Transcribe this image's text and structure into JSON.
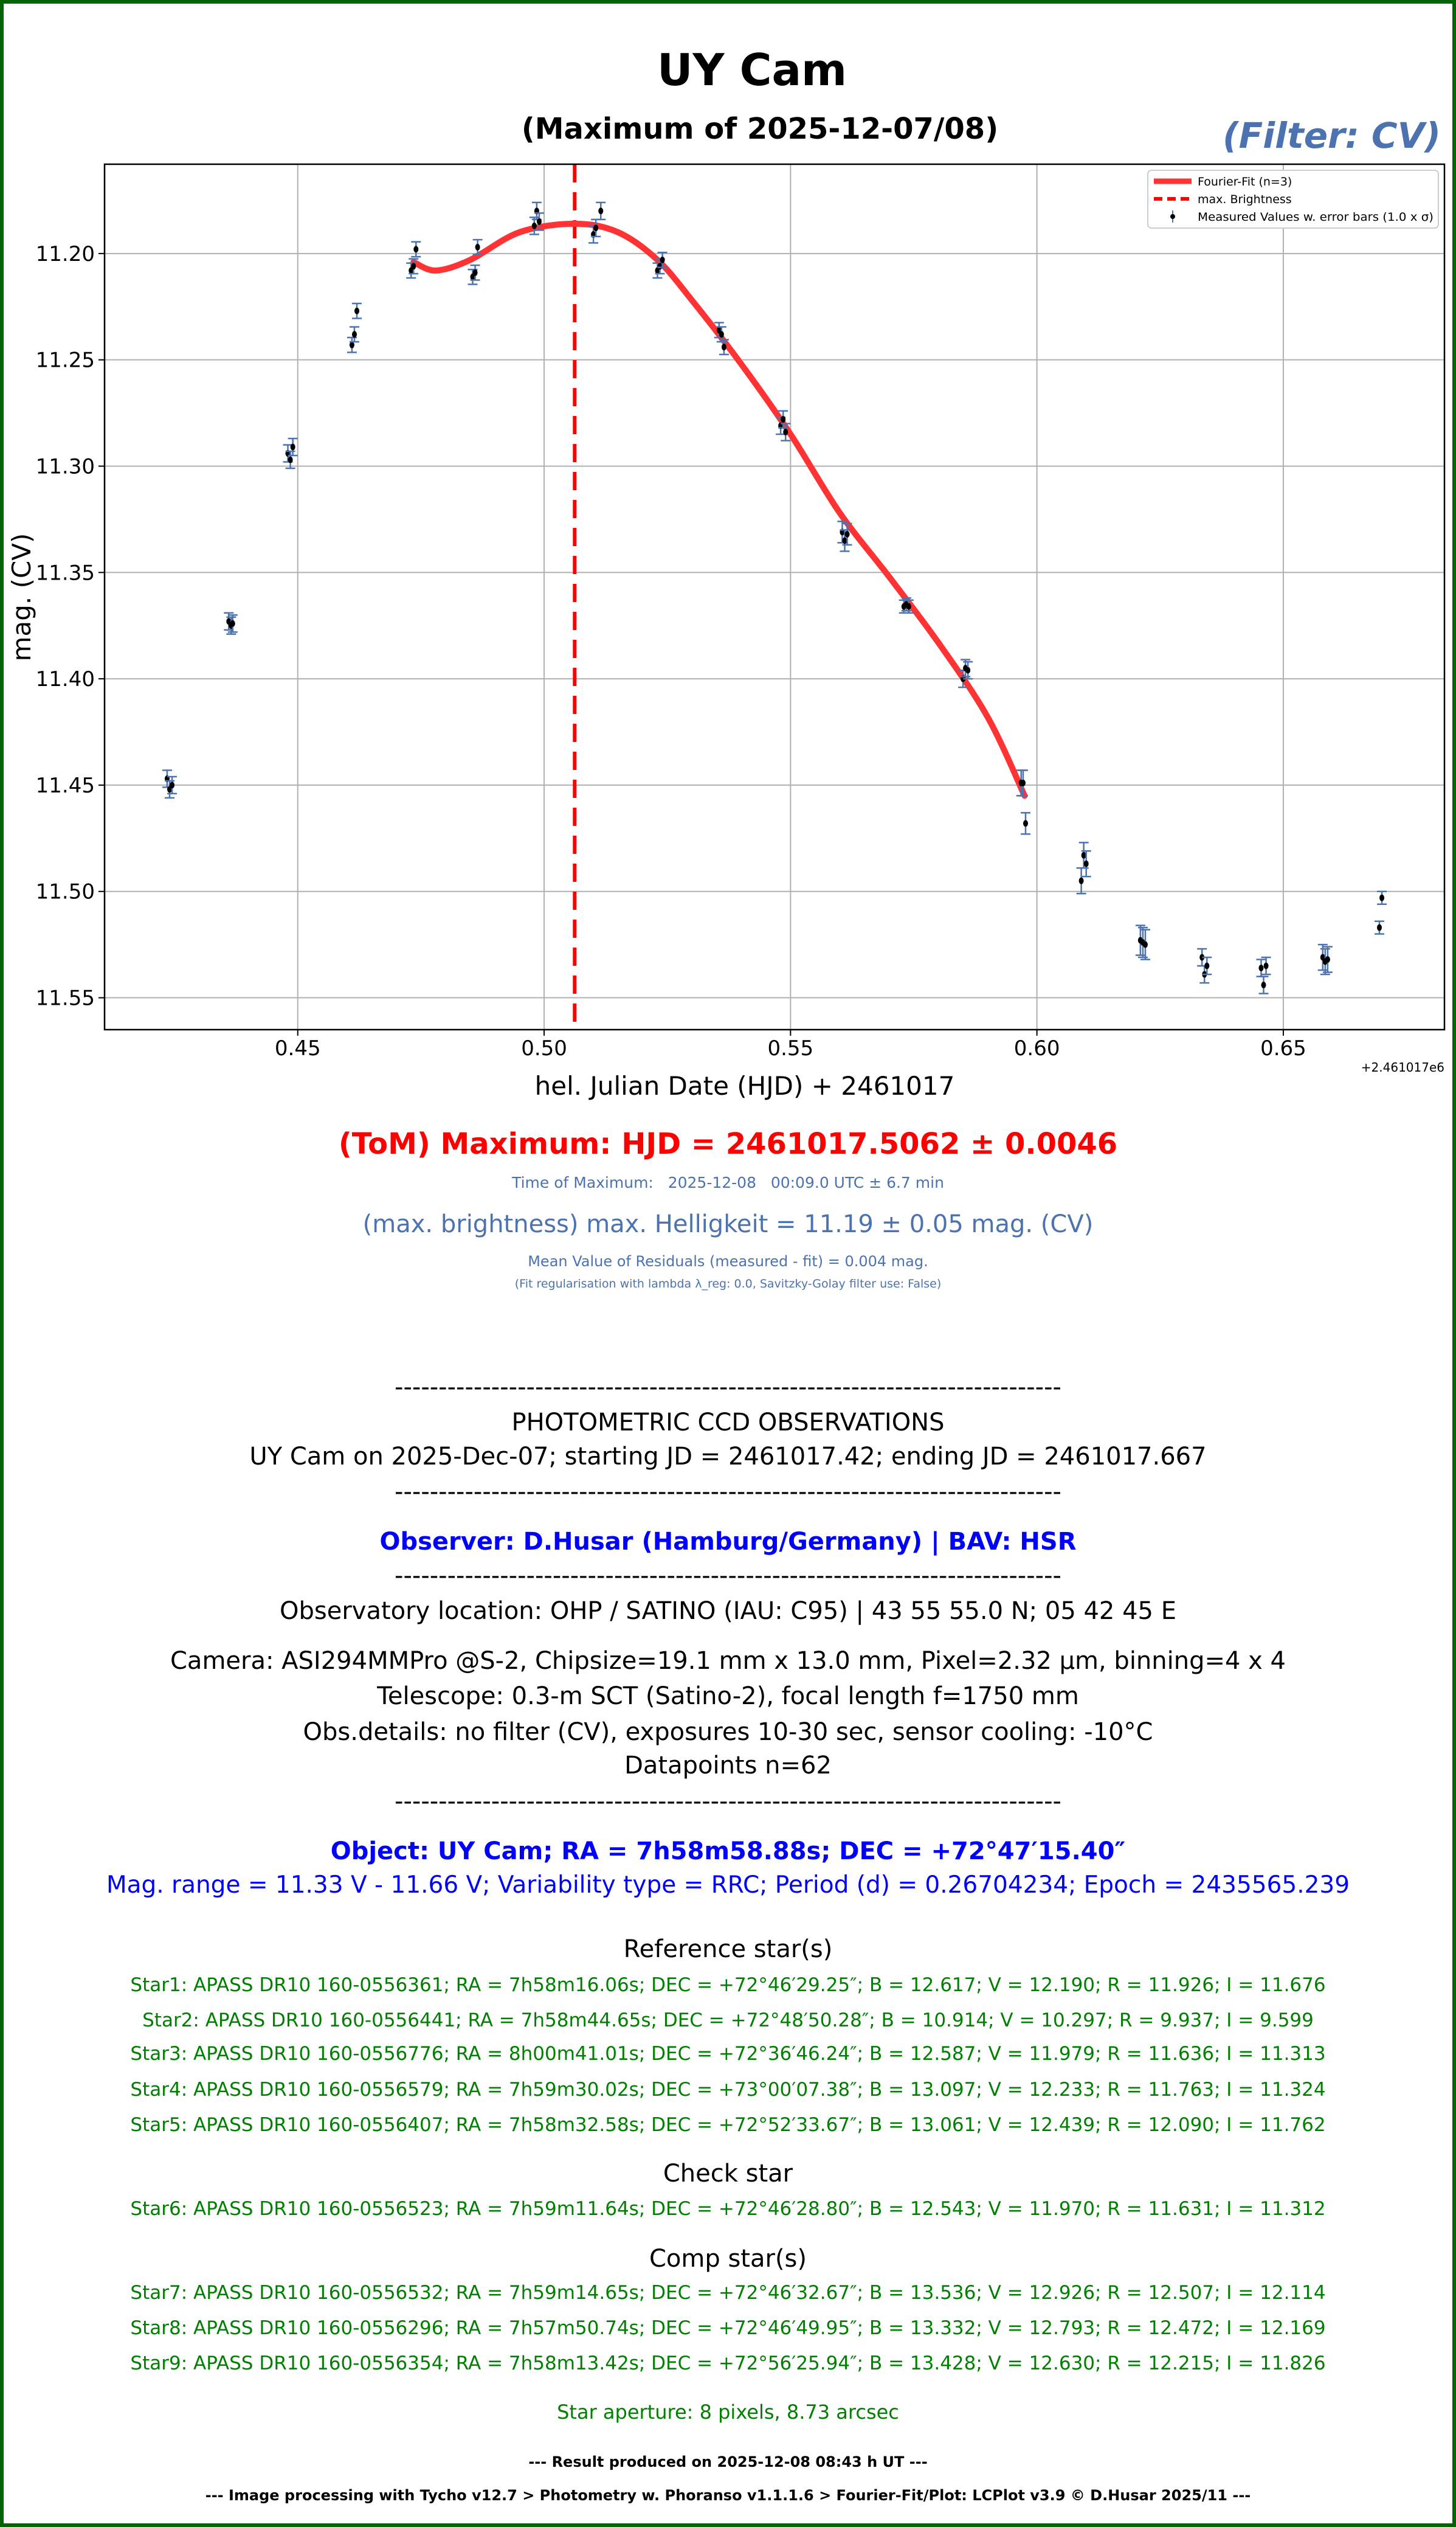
{
  "chart_data": {
    "type": "scatter",
    "title": "UY Cam",
    "subtitle": "(Maximum of 2025-12-07/08)",
    "filter_label": "(Filter: CV)",
    "xlabel": "hel. Julian Date (HJD) + 2461017",
    "ylabel": "mag. (CV)",
    "x_offset_label": "+2.461017e6",
    "xlim": [
      0.4108,
      0.6827
    ],
    "ylim": [
      11.565,
      11.158
    ],
    "y_inverted": true,
    "grid": true,
    "x_ticks": [
      0.45,
      0.5,
      0.55,
      0.6,
      0.65
    ],
    "x_tick_labels": [
      "0.45",
      "0.50",
      "0.55",
      "0.60",
      "0.65"
    ],
    "y_ticks": [
      11.2,
      11.25,
      11.3,
      11.35,
      11.4,
      11.45,
      11.5,
      11.55
    ],
    "y_tick_labels": [
      "11.20",
      "11.25",
      "11.30",
      "11.35",
      "11.40",
      "11.45",
      "11.50",
      "11.55"
    ],
    "legend_position": "top-right",
    "legend": [
      "Fourier-Fit (n=3)",
      "max. Brightness",
      "Measured Values w. error bars (1.0 x σ)"
    ],
    "colors": {
      "fit": "#ff3333",
      "max_line": "#ff0000",
      "errorbar": "#4c72b0",
      "point": "#000000"
    },
    "max_hjd": 0.5062,
    "measured": [
      [
        0.4235,
        11.447,
        0.004
      ],
      [
        0.424,
        11.452,
        0.004
      ],
      [
        0.4245,
        11.45,
        0.004
      ],
      [
        0.436,
        11.373,
        0.004
      ],
      [
        0.4365,
        11.375,
        0.004
      ],
      [
        0.4368,
        11.374,
        0.004
      ],
      [
        0.448,
        11.294,
        0.004
      ],
      [
        0.4485,
        11.297,
        0.004
      ],
      [
        0.449,
        11.291,
        0.004
      ],
      [
        0.461,
        11.243,
        0.0035
      ],
      [
        0.4615,
        11.238,
        0.0035
      ],
      [
        0.462,
        11.227,
        0.0035
      ],
      [
        0.473,
        11.208,
        0.0035
      ],
      [
        0.4735,
        11.206,
        0.0035
      ],
      [
        0.474,
        11.198,
        0.0035
      ],
      [
        0.4855,
        11.211,
        0.0035
      ],
      [
        0.486,
        11.209,
        0.0035
      ],
      [
        0.4865,
        11.197,
        0.0035
      ],
      [
        0.498,
        11.187,
        0.004
      ],
      [
        0.4985,
        11.18,
        0.004
      ],
      [
        0.499,
        11.185,
        0.004
      ],
      [
        0.51,
        11.191,
        0.004
      ],
      [
        0.5105,
        11.188,
        0.004
      ],
      [
        0.5115,
        11.18,
        0.004
      ],
      [
        0.523,
        11.208,
        0.0035
      ],
      [
        0.5235,
        11.206,
        0.0035
      ],
      [
        0.524,
        11.203,
        0.0035
      ],
      [
        0.5355,
        11.236,
        0.0035
      ],
      [
        0.536,
        11.238,
        0.0035
      ],
      [
        0.5365,
        11.244,
        0.0035
      ],
      [
        0.548,
        11.281,
        0.004
      ],
      [
        0.5485,
        11.278,
        0.004
      ],
      [
        0.549,
        11.284,
        0.004
      ],
      [
        0.5605,
        11.331,
        0.005
      ],
      [
        0.561,
        11.335,
        0.005
      ],
      [
        0.5615,
        11.332,
        0.005
      ],
      [
        0.573,
        11.366,
        0.003
      ],
      [
        0.5735,
        11.365,
        0.003
      ],
      [
        0.574,
        11.366,
        0.003
      ],
      [
        0.585,
        11.4,
        0.004
      ],
      [
        0.5855,
        11.395,
        0.004
      ],
      [
        0.586,
        11.396,
        0.004
      ],
      [
        0.5968,
        11.449,
        0.006
      ],
      [
        0.5972,
        11.449,
        0.006
      ],
      [
        0.5977,
        11.468,
        0.005
      ],
      [
        0.609,
        11.495,
        0.006
      ],
      [
        0.6095,
        11.483,
        0.006
      ],
      [
        0.61,
        11.487,
        0.006
      ],
      [
        0.621,
        11.523,
        0.007
      ],
      [
        0.6215,
        11.524,
        0.007
      ],
      [
        0.622,
        11.525,
        0.007
      ],
      [
        0.6335,
        11.531,
        0.004
      ],
      [
        0.634,
        11.539,
        0.004
      ],
      [
        0.6345,
        11.535,
        0.004
      ],
      [
        0.6455,
        11.536,
        0.004
      ],
      [
        0.646,
        11.544,
        0.004
      ],
      [
        0.6465,
        11.535,
        0.004
      ],
      [
        0.658,
        11.531,
        0.006
      ],
      [
        0.6585,
        11.533,
        0.006
      ],
      [
        0.659,
        11.532,
        0.006
      ],
      [
        0.6695,
        11.517,
        0.003
      ],
      [
        0.67,
        11.503,
        0.003
      ]
    ],
    "fit": [
      [
        0.4735,
        11.204
      ],
      [
        0.478,
        11.208
      ],
      [
        0.485,
        11.203
      ],
      [
        0.495,
        11.19
      ],
      [
        0.5062,
        11.186
      ],
      [
        0.515,
        11.19
      ],
      [
        0.523,
        11.203
      ],
      [
        0.53,
        11.222
      ],
      [
        0.54,
        11.252
      ],
      [
        0.55,
        11.285
      ],
      [
        0.56,
        11.322
      ],
      [
        0.57,
        11.352
      ],
      [
        0.58,
        11.383
      ],
      [
        0.59,
        11.418
      ],
      [
        0.5975,
        11.455
      ]
    ]
  },
  "results": {
    "tom": "(ToM) Maximum: HJD = 2461017.5062 ± 0.0046",
    "time_of_max": "Time of Maximum:   2025-12-08   00:09.0 UTC ± 6.7 min",
    "max_brightness": "(max. brightness) max. Helligkeit = 11.19 ± 0.05 mag. (CV)",
    "residuals": "Mean Value of Residuals (measured - fit) = 0.004 mag.",
    "fit_reg": "(Fit regularisation with lambda λ_reg: 0.0, Savitzky-Golay filter use: False)"
  },
  "observation": {
    "separator": "----------------------------------------------------------------------------",
    "heading": "PHOTOMETRIC CCD OBSERVATIONS",
    "range": "UY Cam on 2025-Dec-07; starting JD = 2461017.42; ending JD = 2461017.667",
    "observer": "Observer: D.Husar (Hamburg/Germany) | BAV: HSR",
    "location": "Observatory location: OHP / SATINO (IAU: C95) | 43 55 55.0 N; 05 42 45 E",
    "camera": "Camera: ASI294MMPro @S-2, Chipsize=19.1 mm x 13.0 mm, Pixel=2.32 µm, binning=4 x 4",
    "telescope": "Telescope: 0.3-m SCT (Satino-2), focal length f=1750 mm",
    "details": "Obs.details: no filter (CV), exposures 10-30 sec, sensor cooling: -10°C",
    "datapoints": "Datapoints n=62",
    "object": "Object: UY Cam; RA = 7h58m58.88s; DEC = +72°47′15.40″",
    "mag_range": "Mag. range = 11.33 V - 11.66 V; Variability type = RRC; Period (d) = 0.26704234; Epoch = 2435565.239"
  },
  "stars": {
    "reference_heading": "Reference star(s)",
    "reference": [
      "Star1: APASS DR10 160-0556361; RA = 7h58m16.06s; DEC = +72°46′29.25″; B = 12.617; V = 12.190; R = 11.926; I = 11.676",
      "Star2: APASS DR10 160-0556441; RA = 7h58m44.65s; DEC = +72°48′50.28″; B = 10.914; V = 10.297; R = 9.937; I = 9.599",
      "Star3: APASS DR10 160-0556776; RA = 8h00m41.01s; DEC = +72°36′46.24″; B = 12.587; V = 11.979; R = 11.636; I = 11.313",
      "Star4: APASS DR10 160-0556579; RA = 7h59m30.02s; DEC = +73°00′07.38″; B = 13.097; V = 12.233; R = 11.763; I = 11.324",
      "Star5: APASS DR10 160-0556407; RA = 7h58m32.58s; DEC = +72°52′33.67″; B = 13.061; V = 12.439; R = 12.090; I = 11.762"
    ],
    "check_heading": "Check star",
    "check": [
      "Star6: APASS DR10 160-0556523; RA = 7h59m11.64s; DEC = +72°46′28.80″; B = 12.543; V = 11.970; R = 11.631; I = 11.312"
    ],
    "comp_heading": "Comp star(s)",
    "comp": [
      "Star7: APASS DR10 160-0556532; RA = 7h59m14.65s; DEC = +72°46′32.67″; B = 13.536; V = 12.926; R = 12.507; I = 12.114",
      "Star8: APASS DR10 160-0556296; RA = 7h57m50.74s; DEC = +72°46′49.95″; B = 13.332; V = 12.793; R = 12.472; I = 12.169",
      "Star9: APASS DR10 160-0556354; RA = 7h58m13.42s; DEC = +72°56′25.94″; B = 13.428; V = 12.630; R = 12.215; I = 11.826"
    ],
    "aperture": "Star aperture: 8 pixels, 8.73 arcsec"
  },
  "footer": {
    "result": "--- Result produced on 2025-12-08 08:43 h UT ---",
    "processing": "--- Image processing with Tycho v12.7 > Photometry w. Phoranso v1.1.1.6 > Fourier-Fit/Plot: LCPlot v3.9 © D.Husar 2025/11 ---"
  }
}
